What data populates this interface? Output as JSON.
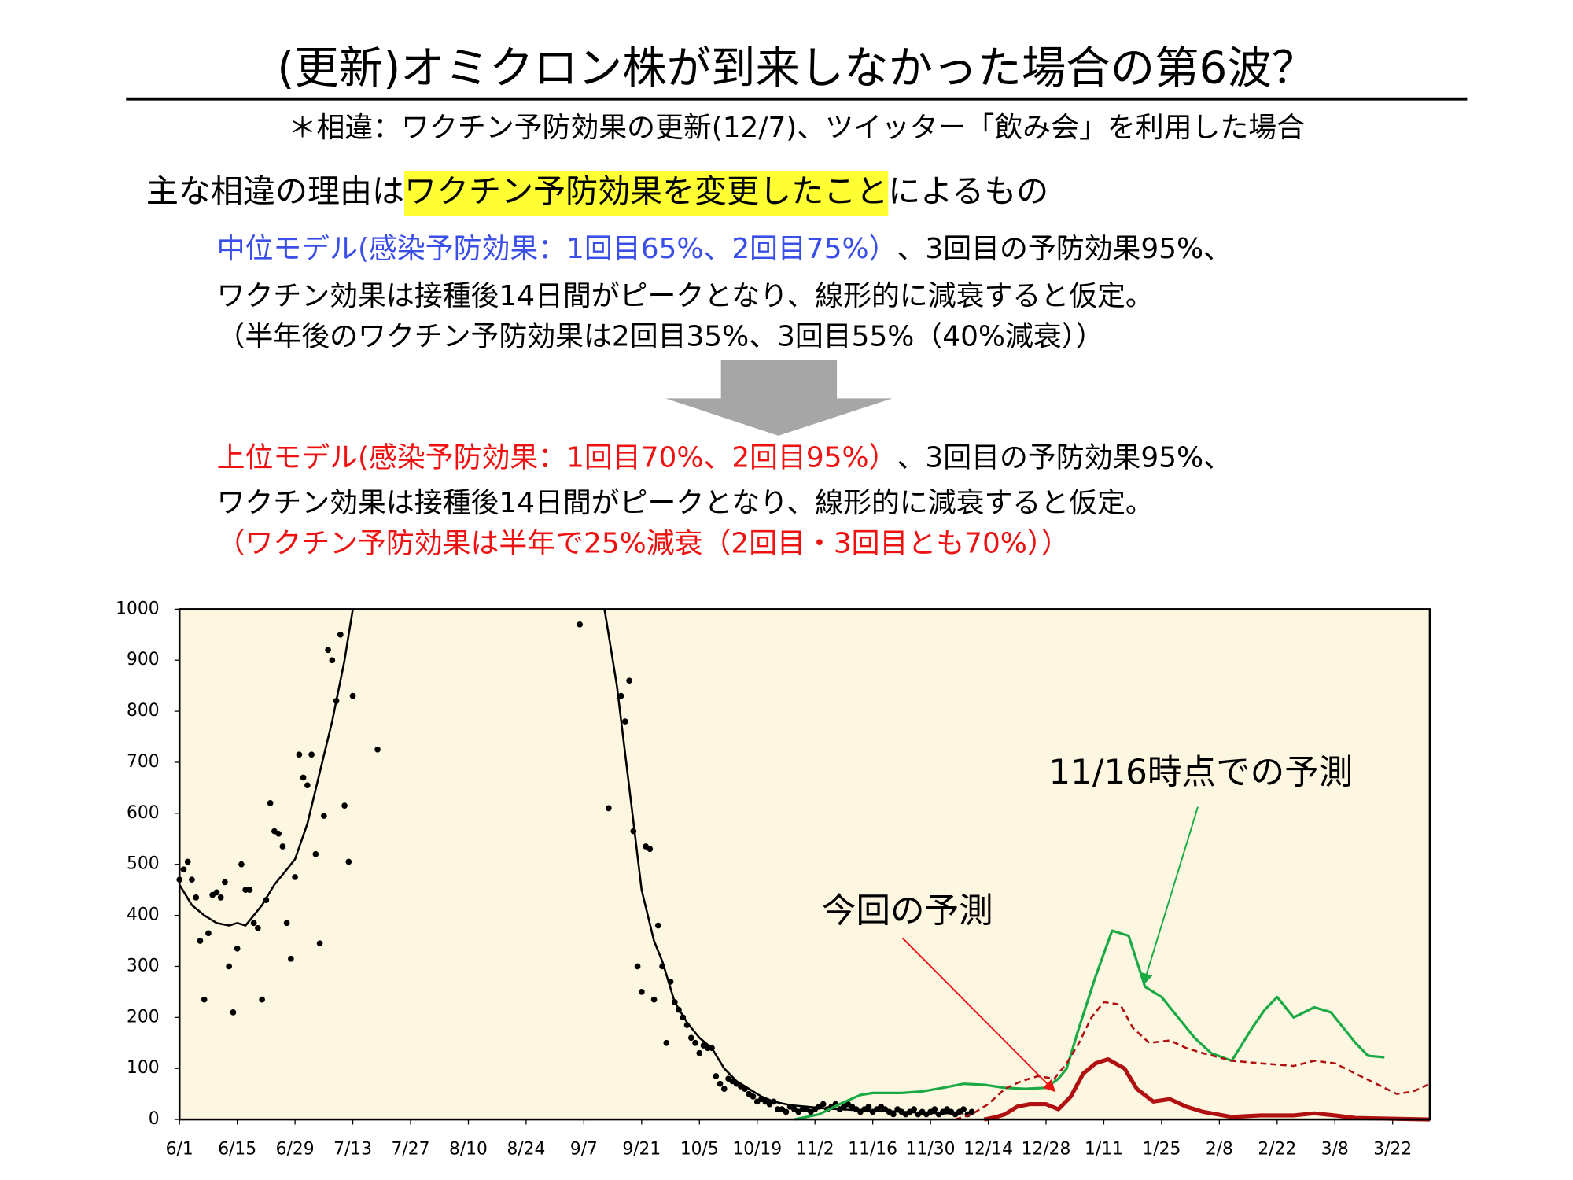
{
  "header": {
    "title": "(更新)オミクロン株が到来しなかった場合の第6波？",
    "subtitle": "＊相違：ワクチン予防効果の更新(12/7)、ツイッター「飲み会」を利用した場合"
  },
  "reason": [
    {
      "text": "主な相違の理由は",
      "color": "#000000"
    },
    {
      "text": "ワクチン予防効果を変更したこと",
      "color": "#000000",
      "highlight": "#ffff33"
    },
    {
      "text": "によるもの",
      "color": "#000000"
    }
  ],
  "middle_model": [
    [
      {
        "text": "中位モデル(感染予防効果：1回目65%、2回目75%）",
        "color": "#3a4ee8"
      },
      {
        "text": "、3回目の予防効果95%、",
        "color": "#000000"
      }
    ],
    [
      {
        "text": "ワクチン効果は接種後14日間がピークとなり、線形的に減衰すると仮定。",
        "color": "#000000"
      }
    ],
    [
      {
        "text": "（半年後のワクチン予防効果は2回目35%、3回目55%（40%減衰））",
        "color": "#000000"
      }
    ]
  ],
  "upper_model": [
    [
      {
        "text": "上位モデル(感染予防効果：1回目70%、2回目95%）",
        "color": "#ee1111"
      },
      {
        "text": "、3回目の予防効果95%、",
        "color": "#000000"
      }
    ],
    [
      {
        "text": "ワクチン効果は接種後14日間がピークとなり、線形的に減衰すると仮定。",
        "color": "#000000"
      }
    ],
    [
      {
        "text": "（ワクチン予防効果は半年で25%減衰（2回目・3回目とも70%））",
        "color": "#ee1111"
      }
    ]
  ],
  "chart_data": {
    "type": "line",
    "background": "#fdf6e1",
    "xlim": [
      0,
      303
    ],
    "xticks": [
      {
        "value": 0,
        "label": "6/1"
      },
      {
        "value": 14,
        "label": "6/15"
      },
      {
        "value": 28,
        "label": "6/29"
      },
      {
        "value": 42,
        "label": "7/13"
      },
      {
        "value": 56,
        "label": "7/27"
      },
      {
        "value": 70,
        "label": "8/10"
      },
      {
        "value": 84,
        "label": "8/24"
      },
      {
        "value": 98,
        "label": "9/7"
      },
      {
        "value": 112,
        "label": "9/21"
      },
      {
        "value": 126,
        "label": "10/5"
      },
      {
        "value": 140,
        "label": "10/19"
      },
      {
        "value": 154,
        "label": "11/2"
      },
      {
        "value": 168,
        "label": "11/16"
      },
      {
        "value": 182,
        "label": "11/30"
      },
      {
        "value": 196,
        "label": "12/14"
      },
      {
        "value": 210,
        "label": "12/28"
      },
      {
        "value": 224,
        "label": "1/11"
      },
      {
        "value": 238,
        "label": "1/25"
      },
      {
        "value": 252,
        "label": "2/8"
      },
      {
        "value": 266,
        "label": "2/22"
      },
      {
        "value": 280,
        "label": "3/8"
      },
      {
        "value": 294,
        "label": "3/22"
      }
    ],
    "ylim": [
      0,
      1000
    ],
    "yticks": [
      0,
      100,
      200,
      300,
      400,
      500,
      600,
      700,
      800,
      900,
      1000
    ],
    "series": [
      {
        "kind": "dots",
        "color": "#000000",
        "x": [
          0,
          1,
          2,
          3,
          4,
          5,
          6,
          7,
          8,
          9,
          10,
          11,
          12,
          13,
          14,
          15,
          16,
          17,
          18,
          19,
          20,
          21,
          22,
          23,
          24,
          25,
          26,
          27,
          28,
          29,
          30,
          31,
          32,
          33,
          34,
          35,
          36,
          37,
          38,
          39,
          40,
          41,
          42,
          48,
          97,
          104,
          107,
          108,
          109,
          110,
          111,
          112,
          113,
          114,
          115,
          116,
          117,
          118,
          119,
          120,
          121,
          122,
          123,
          124,
          125,
          126,
          127,
          128,
          129,
          130,
          131,
          132,
          133,
          134,
          135,
          136,
          137,
          138,
          139,
          140,
          141,
          142,
          143,
          144,
          145,
          146,
          147,
          148,
          149,
          150,
          151,
          152,
          153,
          154,
          155,
          156,
          157,
          158,
          159,
          160,
          161,
          162,
          163,
          164,
          165,
          166,
          167,
          168,
          169,
          170,
          171,
          172,
          173,
          174,
          175,
          176,
          177,
          178,
          179,
          180,
          181,
          182,
          183,
          184,
          185,
          186,
          187,
          188,
          189,
          190,
          191,
          192
        ],
        "values": [
          470,
          490,
          505,
          470,
          435,
          350,
          235,
          365,
          440,
          445,
          435,
          465,
          300,
          210,
          335,
          500,
          450,
          450,
          385,
          375,
          235,
          430,
          620,
          565,
          560,
          535,
          385,
          315,
          475,
          715,
          670,
          655,
          715,
          520,
          345,
          595,
          920,
          900,
          820,
          950,
          615,
          505,
          830,
          725,
          970,
          610,
          830,
          780,
          860,
          565,
          300,
          250,
          535,
          530,
          235,
          380,
          300,
          150,
          270,
          230,
          215,
          200,
          185,
          160,
          150,
          130,
          145,
          140,
          140,
          85,
          70,
          60,
          80,
          75,
          70,
          65,
          60,
          50,
          45,
          35,
          40,
          35,
          30,
          35,
          20,
          20,
          15,
          25,
          20,
          15,
          20,
          20,
          15,
          20,
          25,
          30,
          20,
          25,
          30,
          20,
          25,
          30,
          25,
          20,
          15,
          20,
          25,
          15,
          20,
          25,
          20,
          15,
          10,
          20,
          15,
          10,
          15,
          20,
          10,
          15,
          10,
          15,
          20,
          10,
          15,
          20,
          15,
          10,
          15,
          20,
          10,
          15
        ]
      },
      {
        "kind": "solid",
        "color": "#000000",
        "width": 2,
        "x": [
          0,
          3,
          6,
          9,
          12,
          14,
          16,
          18,
          20,
          23,
          26,
          28,
          31,
          34,
          37,
          40,
          42,
          70,
          103,
          106,
          109,
          112,
          115,
          117,
          120,
          123,
          126,
          129,
          132,
          135,
          138,
          141,
          144,
          148,
          152,
          156,
          160,
          165,
          170,
          175,
          180,
          185,
          190
        ],
        "values": [
          460,
          420,
          400,
          385,
          380,
          385,
          380,
          400,
          420,
          460,
          490,
          510,
          580,
          680,
          780,
          900,
          1000,
          null,
          1000,
          850,
          650,
          450,
          350,
          310,
          230,
          190,
          160,
          140,
          100,
          75,
          60,
          45,
          35,
          28,
          25,
          22,
          20,
          18,
          17,
          15,
          13,
          12,
          12
        ]
      },
      {
        "kind": "solid",
        "color": "#1aaa44",
        "width": 2.5,
        "x": [
          149,
          155,
          160,
          165,
          168,
          175,
          180,
          185,
          190,
          195,
          200,
          205,
          210,
          213,
          215,
          218,
          222,
          226,
          230,
          234,
          238,
          242,
          246,
          250,
          255,
          260,
          263,
          266,
          270,
          275,
          279,
          282,
          285,
          288,
          292
        ],
        "values": [
          0,
          10,
          30,
          48,
          52,
          52,
          55,
          62,
          70,
          68,
          62,
          60,
          62,
          80,
          100,
          180,
          280,
          370,
          360,
          260,
          240,
          200,
          160,
          130,
          115,
          180,
          215,
          240,
          200,
          220,
          210,
          180,
          150,
          125,
          122
        ]
      },
      {
        "kind": "dashed",
        "color": "#b01010",
        "width": 2,
        "x": [
          188,
          192,
          196,
          200,
          204,
          208,
          212,
          215,
          218,
          221,
          224,
          228,
          231,
          235,
          240,
          244,
          248,
          255,
          262,
          270,
          275,
          280,
          285,
          290,
          295,
          299,
          303
        ],
        "values": [
          0,
          10,
          30,
          60,
          75,
          85,
          80,
          110,
          150,
          200,
          230,
          225,
          180,
          150,
          155,
          140,
          130,
          115,
          110,
          105,
          115,
          110,
          90,
          70,
          50,
          55,
          70
        ]
      },
      {
        "kind": "solid",
        "color": "#b01010",
        "width": 4,
        "x": [
          195,
          198,
          200,
          203,
          206,
          210,
          213,
          216,
          219,
          222,
          225,
          229,
          232,
          236,
          240,
          244,
          248,
          255,
          262,
          270,
          275,
          280,
          285,
          303
        ],
        "values": [
          0,
          5,
          10,
          25,
          30,
          30,
          20,
          45,
          90,
          110,
          118,
          100,
          60,
          35,
          40,
          25,
          15,
          5,
          8,
          8,
          12,
          8,
          3,
          0
        ]
      }
    ],
    "annotations": [
      {
        "text": "11/16時点での予測",
        "color": "#000000"
      },
      {
        "text": "今回の予測",
        "color": "#000000"
      }
    ]
  }
}
